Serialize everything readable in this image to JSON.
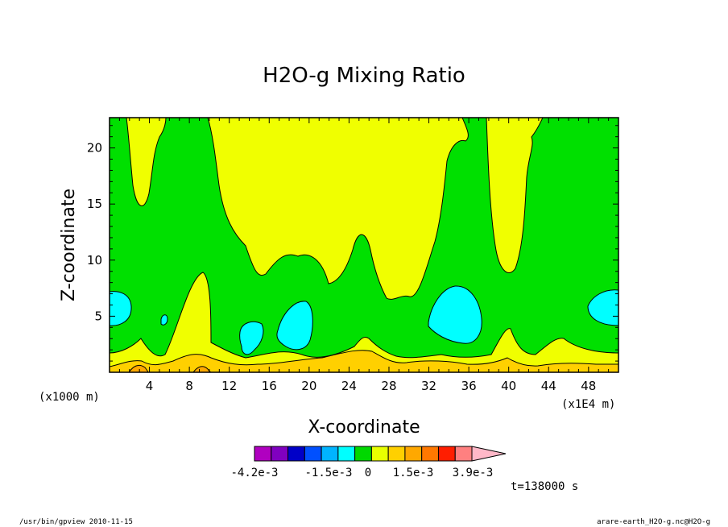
{
  "chart_data": {
    "type": "contour",
    "title": "H2O-g Mixing Ratio",
    "xlabel": "X-coordinate",
    "ylabel": "Z-coordinate",
    "x_units": "(x1E4 m)",
    "y_units": "(x1000 m)",
    "xlim": [
      0,
      51
    ],
    "ylim": [
      0,
      22.7
    ],
    "x_ticks": [
      4,
      8,
      12,
      16,
      20,
      24,
      28,
      32,
      36,
      40,
      44,
      48
    ],
    "y_ticks": [
      5,
      10,
      15,
      20
    ],
    "legend": {
      "labels": [
        "-4.2e-3",
        "-1.5e-3",
        "0",
        "1.5e-3",
        "3.9e-3"
      ],
      "colors": [
        "#b000c0",
        "#8000c0",
        "#0000c8",
        "#0050ff",
        "#00b4ff",
        "#00ffff",
        "#00d800",
        "#e8ff00",
        "#ffd000",
        "#ffa800",
        "#ff7800",
        "#ff1e00",
        "#ff8080",
        "#ffb8c8"
      ]
    },
    "time_label": "t=138000 s",
    "level_colors": {
      "cyan": "#00ffff",
      "green": "#00e000",
      "yellow": "#f0ff00",
      "gold": "#ffd000",
      "orange": "#ffa800"
    }
  },
  "footer": {
    "left": "/usr/bin/gpview  2010-11-15",
    "right": "arare-earth_H2O-g.nc@H2O-g"
  }
}
